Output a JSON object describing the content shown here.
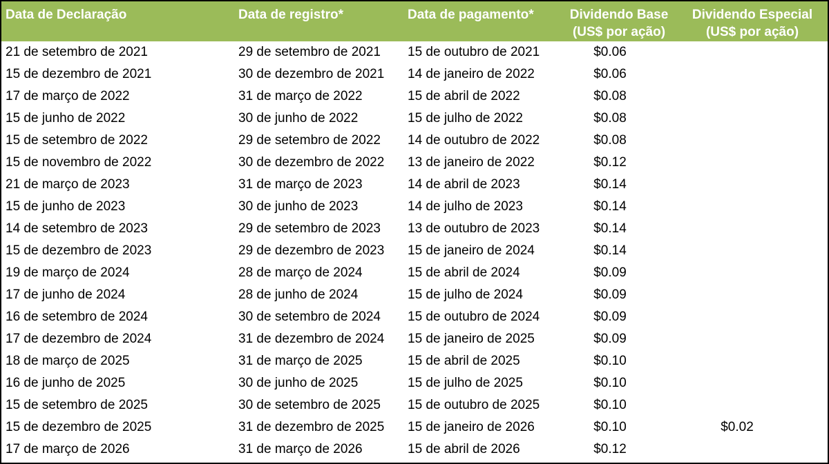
{
  "chart_data": {
    "type": "table",
    "columns": [
      {
        "label": "Data de Declaração",
        "subLabel": ""
      },
      {
        "label": "Data de registro*",
        "subLabel": ""
      },
      {
        "label": "Data de pagamento*",
        "subLabel": ""
      },
      {
        "label": "Dividendo Base",
        "subLabel": "(US$ por ação)"
      },
      {
        "label": "Dividendo Especial",
        "subLabel": "(US$ por ação)"
      }
    ],
    "rows": [
      [
        "21 de setembro de 2021",
        "29 de setembro de 2021",
        "15 de outubro de 2021",
        "$0.06",
        ""
      ],
      [
        "15 de dezembro de 2021",
        "30 de dezembro de 2021",
        "14 de janeiro de 2022",
        "$0.06",
        ""
      ],
      [
        "17 de março de 2022",
        "31 de março de 2022",
        "15 de abril de 2022",
        "$0.08",
        ""
      ],
      [
        "15 de junho de 2022",
        "30 de junho de 2022",
        "15 de julho de 2022",
        "$0.08",
        ""
      ],
      [
        "15 de setembro de 2022",
        "29 de setembro de 2022",
        "14 de outubro de 2022",
        "$0.08",
        ""
      ],
      [
        "15 de novembro de 2022",
        "30 de dezembro de 2022",
        "13 de janeiro de 2022",
        "$0.12",
        ""
      ],
      [
        "21 de março de 2023",
        "31 de março de 2023",
        "14 de abril de 2023",
        "$0.14",
        ""
      ],
      [
        "15 de junho de 2023",
        "30 de junho de 2023",
        "14 de julho de 2023",
        "$0.14",
        ""
      ],
      [
        "14 de setembro de 2023",
        "29 de setembro de 2023",
        "13 de outubro de 2023",
        "$0.14",
        ""
      ],
      [
        "15 de dezembro de 2023",
        "29 de dezembro de 2023",
        "15 de janeiro de 2024",
        "$0.14",
        ""
      ],
      [
        "19 de março de 2024",
        "28 de março de 2024",
        "15 de abril de 2024",
        "$0.09",
        ""
      ],
      [
        "17 de junho de 2024",
        "28 de junho de 2024",
        "15 de julho de 2024",
        "$0.09",
        ""
      ],
      [
        "16 de setembro de 2024",
        "30 de setembro de 2024",
        "15 de outubro de 2024",
        "$0.09",
        ""
      ],
      [
        "17 de dezembro de 2024",
        "31 de dezembro de 2024",
        "15 de janeiro de 2025",
        "$0.09",
        ""
      ],
      [
        "18 de março de 2025",
        "31 de março de 2025",
        "15 de abril de 2025",
        "$0.10",
        ""
      ],
      [
        "16 de junho de 2025",
        "30 de junho de 2025",
        "15 de julho de 2025",
        "$0.10",
        ""
      ],
      [
        "15 de setembro de 2025",
        "30 de setembro de 2025",
        "15 de outubro de 2025",
        "$0.10",
        ""
      ],
      [
        "15 de dezembro de 2025",
        "31 de dezembro de 2025",
        "15 de janeiro de 2026",
        "$0.10",
        "$0.02"
      ],
      [
        "17 de março de 2026",
        "31 de março de 2026",
        "15 de abril de 2026",
        "$0.12",
        ""
      ]
    ]
  },
  "colors": {
    "header_bg": "#9bbb59",
    "header_text": "#ffffff",
    "body_text": "#000000",
    "border": "#000000",
    "background": "#ffffff"
  }
}
